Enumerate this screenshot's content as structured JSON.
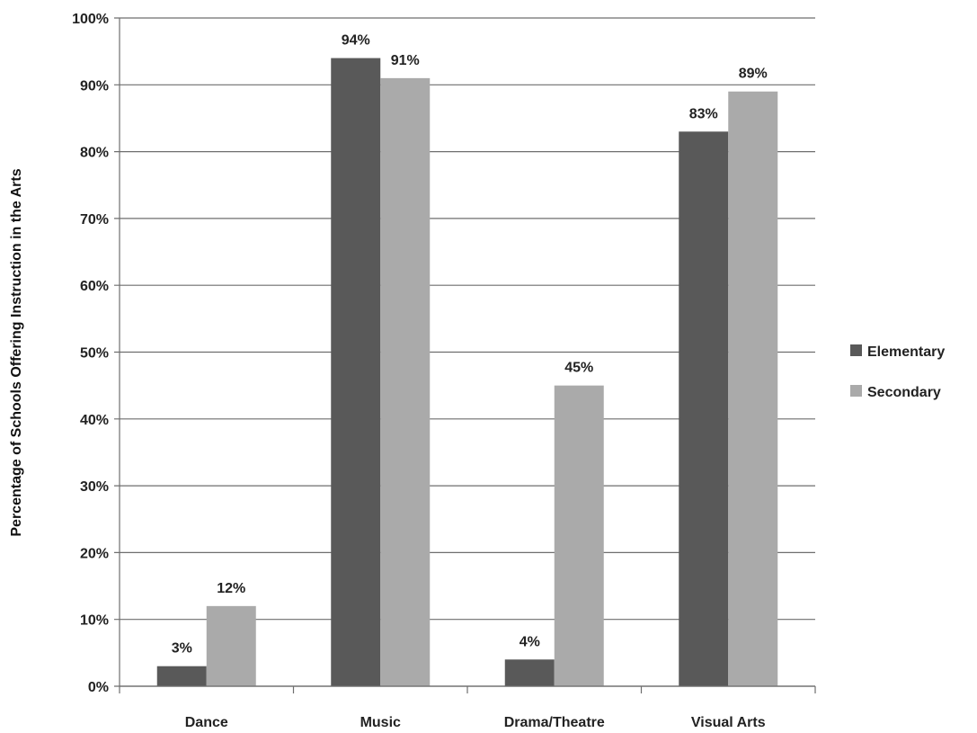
{
  "chart_data": {
    "type": "bar",
    "categories": [
      "Dance",
      "Music",
      "Drama/Theatre",
      "Visual Arts"
    ],
    "series": [
      {
        "name": "Elementary",
        "values": [
          3,
          94,
          4,
          83
        ],
        "labels": [
          "3%",
          "94%",
          "4%",
          "83%"
        ],
        "color": "#595959"
      },
      {
        "name": "Secondary",
        "values": [
          12,
          91,
          45,
          89
        ],
        "labels": [
          "12%",
          "91%",
          "45%",
          "89%"
        ],
        "color": "#aaaaaa"
      }
    ],
    "title": "",
    "xlabel": "",
    "ylabel": "Percentage of Schools Offering Instruction in the Arts",
    "ylim": [
      0,
      100
    ],
    "yticks": [
      0,
      10,
      20,
      30,
      40,
      50,
      60,
      70,
      80,
      90,
      100
    ],
    "ytick_labels": [
      "0%",
      "10%",
      "20%",
      "30%",
      "40%",
      "50%",
      "60%",
      "70%",
      "80%",
      "90%",
      "100%"
    ],
    "grid": true,
    "legend_position": "right"
  }
}
